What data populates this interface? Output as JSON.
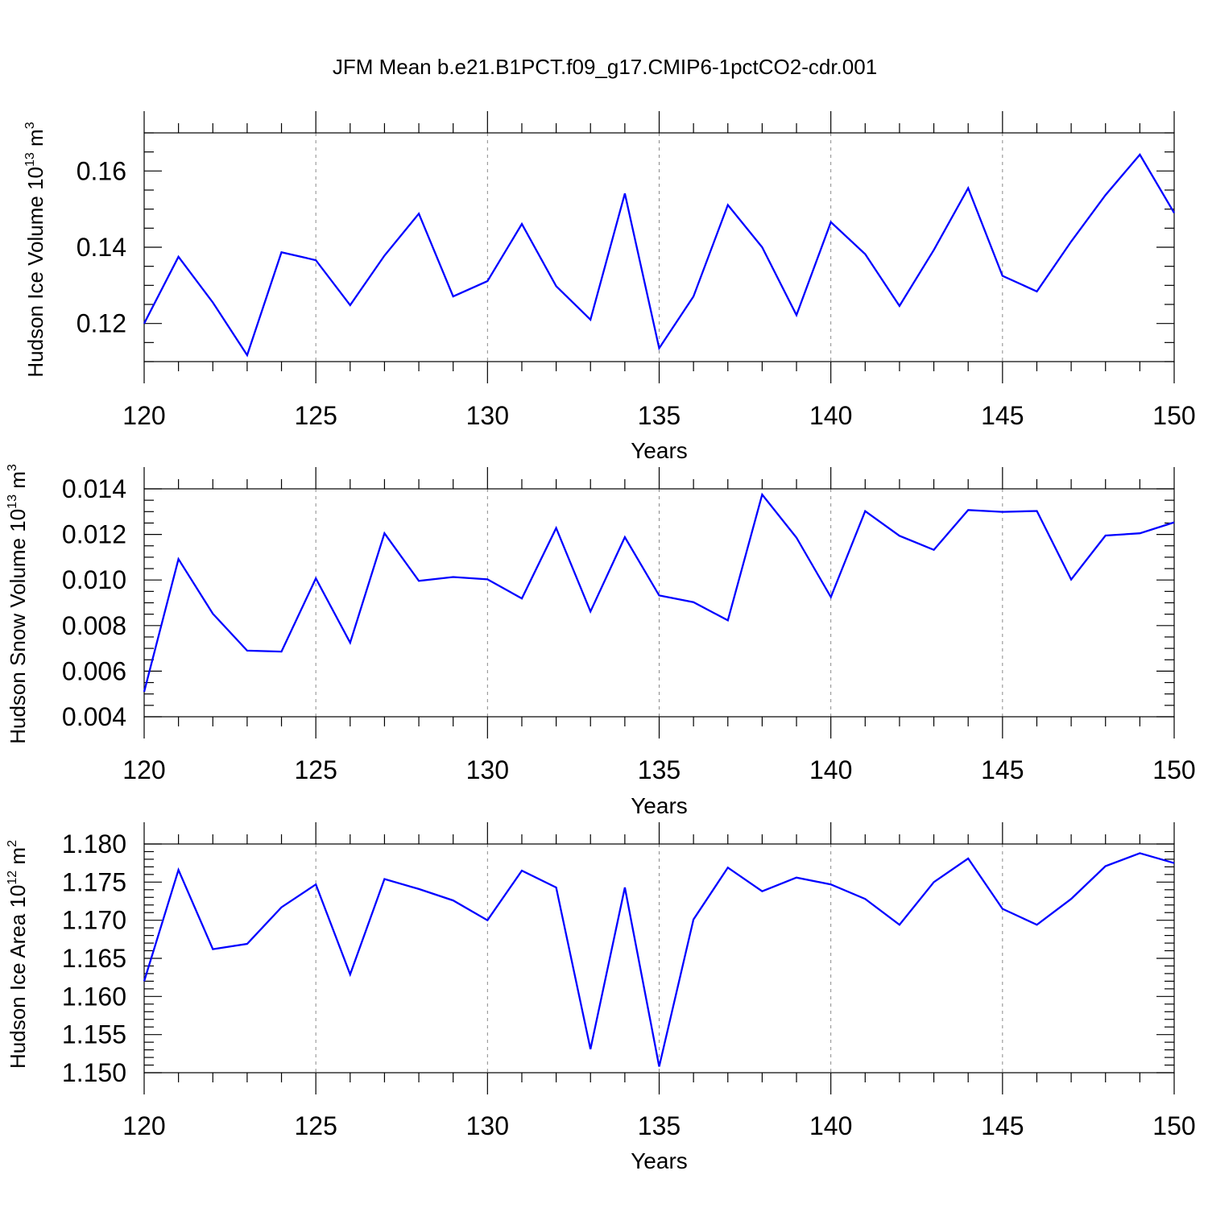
{
  "figure": {
    "title": "JFM Mean b.e21.B1PCT.f09_g17.CMIP6-1pctCO2-cdr.001"
  },
  "chart_data": [
    {
      "type": "line",
      "title": "",
      "xlabel": "Years",
      "ylabel": {
        "main": "Hudson Ice Volume 10",
        "exponent": "13",
        "unit": " m",
        "unit_exponent": "3"
      },
      "xlim": [
        120,
        150
      ],
      "ylim": [
        0.11,
        0.17
      ],
      "xticks": [
        120,
        125,
        130,
        135,
        140,
        145,
        150
      ],
      "xtick_labels": [
        "120",
        "125",
        "130",
        "135",
        "140",
        "145",
        "150"
      ],
      "yticks": [
        0.12,
        0.14,
        0.16
      ],
      "ytick_labels": [
        "0.12",
        "0.14",
        "0.16"
      ],
      "y_minor_step": 0.005,
      "grid": "vertical dashed at major x ticks",
      "line_color": "#0000ff",
      "x": [
        120,
        121,
        122,
        123,
        124,
        125,
        126,
        127,
        128,
        129,
        130,
        131,
        132,
        133,
        134,
        135,
        136,
        137,
        138,
        139,
        140,
        141,
        142,
        143,
        144,
        145,
        146,
        147,
        148,
        149,
        150
      ],
      "y": [
        0.12,
        0.1375,
        0.1255,
        0.1117,
        0.1387,
        0.1366,
        0.1248,
        0.1378,
        0.1488,
        0.1271,
        0.1311,
        0.1461,
        0.1298,
        0.121,
        0.1541,
        0.1135,
        0.1271,
        0.1511,
        0.14,
        0.1222,
        0.1466,
        0.1382,
        0.1246,
        0.1393,
        0.1555,
        0.1325,
        0.1284,
        0.1415,
        0.1537,
        0.1643,
        0.149
      ]
    },
    {
      "type": "line",
      "title": "",
      "xlabel": "Years",
      "ylabel": {
        "main": "Hudson Snow Volume 10",
        "exponent": "13",
        "unit": " m",
        "unit_exponent": "3"
      },
      "xlim": [
        120,
        150
      ],
      "ylim": [
        0.004,
        0.014
      ],
      "xticks": [
        120,
        125,
        130,
        135,
        140,
        145,
        150
      ],
      "xtick_labels": [
        "120",
        "125",
        "130",
        "135",
        "140",
        "145",
        "150"
      ],
      "yticks": [
        0.004,
        0.006,
        0.008,
        0.01,
        0.012,
        0.014
      ],
      "ytick_labels": [
        "0.004",
        "0.006",
        "0.008",
        "0.010",
        "0.012",
        "0.014"
      ],
      "y_minor_step": 0.0005,
      "grid": "vertical dashed at major x ticks",
      "line_color": "#0000ff",
      "x": [
        120,
        121,
        122,
        123,
        124,
        125,
        126,
        127,
        128,
        129,
        130,
        131,
        132,
        133,
        134,
        135,
        136,
        137,
        138,
        139,
        140,
        141,
        142,
        143,
        144,
        145,
        146,
        147,
        148,
        149,
        150
      ],
      "y": [
        0.0051,
        0.01092,
        0.00852,
        0.0069,
        0.00686,
        0.01007,
        0.00725,
        0.01205,
        0.00996,
        0.01013,
        0.01003,
        0.00919,
        0.01228,
        0.00862,
        0.01188,
        0.00932,
        0.00903,
        0.00823,
        0.01375,
        0.01186,
        0.00925,
        0.01302,
        0.01194,
        0.01132,
        0.01307,
        0.01299,
        0.01303,
        0.01002,
        0.01195,
        0.01205,
        0.01253
      ]
    },
    {
      "type": "line",
      "title": "",
      "xlabel": "Years",
      "ylabel": {
        "main": "Hudson Ice Area 10",
        "exponent": "12",
        "unit": " m",
        "unit_exponent": "2"
      },
      "xlim": [
        120,
        150
      ],
      "ylim": [
        1.15,
        1.18
      ],
      "xticks": [
        120,
        125,
        130,
        135,
        140,
        145,
        150
      ],
      "xtick_labels": [
        "120",
        "125",
        "130",
        "135",
        "140",
        "145",
        "150"
      ],
      "yticks": [
        1.15,
        1.155,
        1.16,
        1.165,
        1.17,
        1.175,
        1.18
      ],
      "ytick_labels": [
        "1.150",
        "1.155",
        "1.160",
        "1.165",
        "1.170",
        "1.175",
        "1.180"
      ],
      "y_minor_step": 0.001,
      "grid": "vertical dashed at major x ticks",
      "line_color": "#0000ff",
      "x": [
        120,
        121,
        122,
        123,
        124,
        125,
        126,
        127,
        128,
        129,
        130,
        131,
        132,
        133,
        134,
        135,
        136,
        137,
        138,
        139,
        140,
        141,
        142,
        143,
        144,
        145,
        146,
        147,
        148,
        149,
        150
      ],
      "y": [
        1.162,
        1.1766,
        1.1662,
        1.1669,
        1.1717,
        1.1747,
        1.1629,
        1.1754,
        1.1741,
        1.1726,
        1.17,
        1.1765,
        1.1743,
        1.1531,
        1.1743,
        1.1508,
        1.1701,
        1.1769,
        1.1738,
        1.1756,
        1.1747,
        1.1728,
        1.1694,
        1.175,
        1.1781,
        1.1715,
        1.1694,
        1.1728,
        1.1771,
        1.1788,
        1.1775
      ]
    }
  ]
}
